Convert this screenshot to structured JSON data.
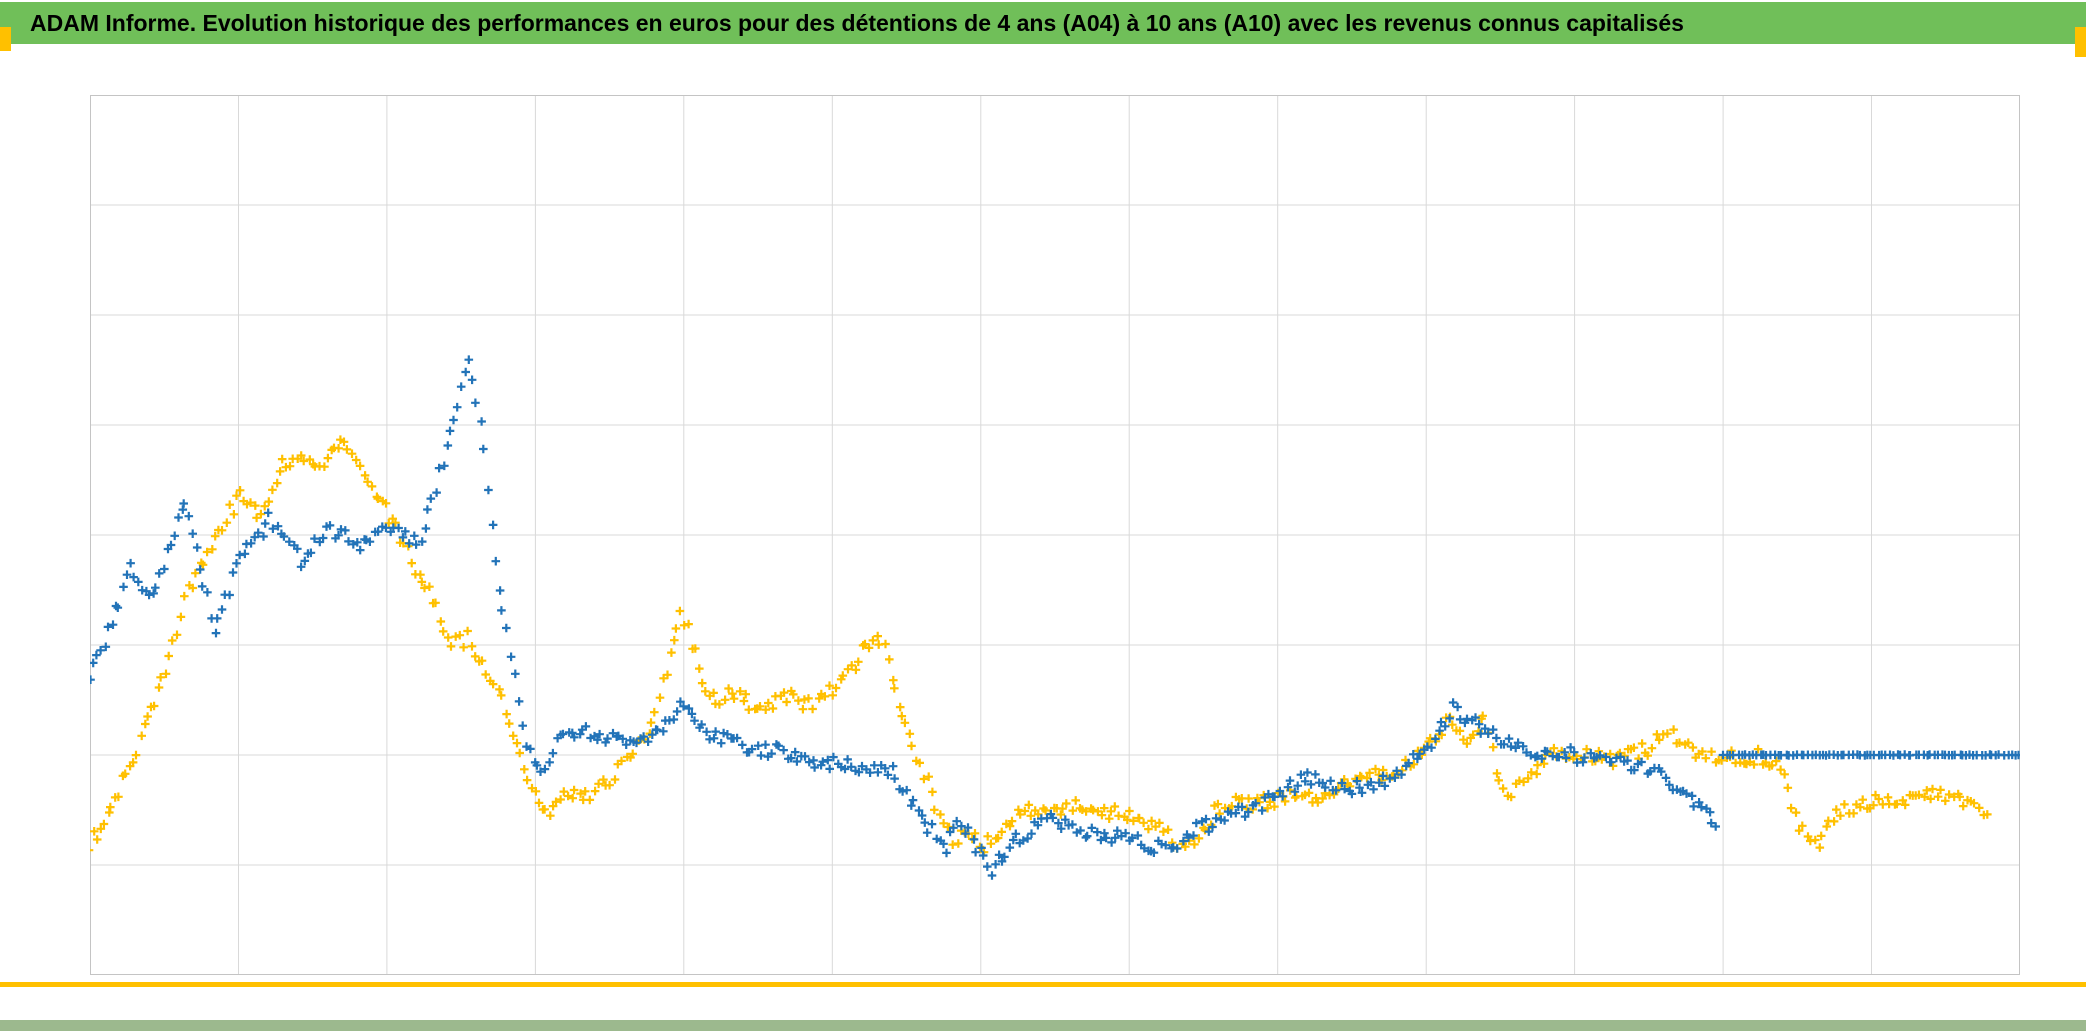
{
  "header": {
    "title": "ADAM Informe. Evolution historique des performances en euros pour des détentions de 4 ans (A04) à 10 ans (A10) avec les revenus connus capitalisés",
    "bg_color": "#70bf59",
    "text_color": "#000000"
  },
  "accents": {
    "corner_color": "#ffc000",
    "bottom_rule_color": "#ffc000",
    "footer_strip_color": "#9cb98e"
  },
  "chart_data": {
    "type": "scatter",
    "title": "",
    "xlabel": "",
    "ylabel": "",
    "x_tick_labels": [],
    "y_tick_labels": [],
    "legend": "none",
    "marker": "plus-cross",
    "grid": "on",
    "grid_color": "#d9d9d9",
    "frame_color": "#c4c4c4",
    "x_gridline_count": 14,
    "y_gridline_count": 9,
    "x_range": [
      0,
      13
    ],
    "y_range": [
      0,
      8
    ],
    "jitter": 0.07,
    "point_step": 0.025,
    "marker_size": 4.3,
    "marker_stroke": 2.2,
    "series": [
      {
        "id": "series_yellow",
        "name": "",
        "color": "#ffc000",
        "segments": [
          [
            [
              0,
              1.18
            ],
            [
              0.17,
              1.59
            ],
            [
              0.34,
              2.14
            ],
            [
              0.51,
              2.77
            ],
            [
              0.67,
              3.5
            ],
            [
              0.84,
              4.0
            ],
            [
              1.01,
              4.36
            ],
            [
              1.15,
              4.14
            ],
            [
              1.28,
              4.59
            ],
            [
              1.42,
              4.77
            ],
            [
              1.55,
              4.61
            ],
            [
              1.69,
              4.85
            ],
            [
              1.79,
              4.7
            ],
            [
              1.9,
              4.45
            ],
            [
              2.04,
              4.12
            ],
            [
              2.17,
              3.77
            ],
            [
              2.31,
              3.41
            ],
            [
              2.44,
              3.0
            ],
            [
              2.55,
              3.06
            ],
            [
              2.64,
              2.79
            ],
            [
              2.75,
              2.57
            ],
            [
              2.82,
              2.3
            ],
            [
              2.89,
              1.97
            ],
            [
              2.97,
              1.66
            ],
            [
              3.07,
              1.48
            ],
            [
              3.17,
              1.61
            ],
            [
              3.27,
              1.68
            ],
            [
              3.37,
              1.59
            ],
            [
              3.48,
              1.75
            ],
            [
              3.61,
              1.95
            ],
            [
              3.74,
              2.15
            ],
            [
              3.83,
              2.5
            ],
            [
              3.91,
              2.91
            ],
            [
              3.98,
              3.3
            ],
            [
              4.05,
              3.03
            ],
            [
              4.12,
              2.66
            ],
            [
              4.22,
              2.5
            ],
            [
              4.32,
              2.57
            ],
            [
              4.42,
              2.5
            ],
            [
              4.52,
              2.41
            ],
            [
              4.62,
              2.5
            ],
            [
              4.72,
              2.55
            ],
            [
              4.82,
              2.45
            ],
            [
              4.93,
              2.52
            ],
            [
              5.03,
              2.61
            ],
            [
              5.13,
              2.75
            ],
            [
              5.23,
              3.0
            ],
            [
              5.32,
              3.03
            ],
            [
              5.38,
              2.85
            ],
            [
              5.45,
              2.5
            ],
            [
              5.52,
              2.15
            ],
            [
              5.59,
              1.95
            ],
            [
              5.65,
              1.75
            ],
            [
              5.72,
              1.43
            ],
            [
              5.82,
              1.23
            ],
            [
              5.92,
              1.29
            ],
            [
              6.02,
              1.18
            ],
            [
              6.15,
              1.34
            ],
            [
              6.29,
              1.48
            ],
            [
              6.42,
              1.54
            ],
            [
              6.56,
              1.5
            ],
            [
              6.69,
              1.54
            ],
            [
              6.83,
              1.48
            ],
            [
              6.96,
              1.45
            ],
            [
              7.1,
              1.39
            ],
            [
              7.23,
              1.32
            ],
            [
              7.33,
              1.11
            ],
            [
              7.44,
              1.23
            ],
            [
              7.57,
              1.48
            ],
            [
              7.71,
              1.59
            ],
            [
              7.84,
              1.54
            ],
            [
              7.98,
              1.59
            ],
            [
              8.11,
              1.64
            ],
            [
              8.25,
              1.59
            ],
            [
              8.38,
              1.68
            ],
            [
              8.52,
              1.77
            ],
            [
              8.65,
              1.82
            ],
            [
              8.79,
              1.86
            ],
            [
              8.92,
              1.95
            ],
            [
              9.06,
              2.14
            ],
            [
              9.13,
              2.3
            ],
            [
              9.22,
              2.23
            ],
            [
              9.3,
              2.14
            ],
            [
              9.39,
              2.4
            ],
            [
              9.47,
              1.88
            ],
            [
              9.55,
              1.59
            ],
            [
              9.66,
              1.75
            ],
            [
              9.76,
              1.94
            ],
            [
              9.86,
              2.0
            ],
            [
              9.96,
              1.95
            ],
            [
              10.09,
              2.0
            ],
            [
              10.23,
              1.95
            ],
            [
              10.36,
              1.99
            ],
            [
              10.5,
              2.06
            ],
            [
              10.63,
              2.23
            ],
            [
              10.74,
              2.1
            ],
            [
              10.84,
              1.97
            ],
            [
              10.97,
              2.01
            ],
            [
              11.11,
              1.95
            ],
            [
              11.24,
              1.99
            ],
            [
              11.38,
              1.88
            ],
            [
              11.51,
              1.34
            ],
            [
              11.62,
              1.17
            ],
            [
              11.74,
              1.41
            ],
            [
              11.87,
              1.54
            ],
            [
              12.01,
              1.59
            ],
            [
              12.15,
              1.54
            ],
            [
              12.28,
              1.59
            ],
            [
              12.42,
              1.64
            ],
            [
              12.55,
              1.59
            ],
            [
              12.67,
              1.54
            ],
            [
              12.78,
              1.46
            ]
          ]
        ]
      },
      {
        "id": "series_blue",
        "name": "",
        "color": "#2273b8",
        "segments": [
          [
            [
              0,
              2.68
            ],
            [
              0.27,
              3.68
            ],
            [
              0.4,
              3.41
            ],
            [
              0.64,
              4.27
            ],
            [
              0.84,
              3.14
            ],
            [
              1.01,
              3.77
            ],
            [
              1.21,
              4.14
            ],
            [
              1.42,
              3.77
            ],
            [
              1.62,
              4.05
            ],
            [
              1.82,
              3.91
            ],
            [
              2.02,
              4.09
            ],
            [
              2.23,
              3.91
            ],
            [
              2.43,
              4.95
            ],
            [
              2.55,
              5.61
            ],
            [
              2.63,
              5.05
            ],
            [
              2.73,
              3.77
            ],
            [
              2.83,
              2.95
            ],
            [
              2.94,
              2.09
            ],
            [
              3.04,
              1.82
            ],
            [
              3.17,
              2.23
            ],
            [
              3.44,
              2.18
            ],
            [
              3.78,
              2.14
            ],
            [
              3.98,
              2.45
            ],
            [
              4.12,
              2.23
            ],
            [
              4.39,
              2.09
            ],
            [
              4.72,
              2.0
            ],
            [
              5.06,
              1.91
            ],
            [
              5.4,
              1.86
            ],
            [
              5.6,
              1.41
            ],
            [
              5.77,
              1.18
            ],
            [
              5.87,
              1.41
            ],
            [
              6.07,
              0.95
            ],
            [
              6.24,
              1.23
            ],
            [
              6.44,
              1.41
            ],
            [
              6.65,
              1.32
            ],
            [
              6.85,
              1.27
            ],
            [
              7.05,
              1.23
            ],
            [
              7.25,
              1.14
            ],
            [
              7.46,
              1.32
            ],
            [
              7.66,
              1.43
            ],
            [
              7.86,
              1.52
            ],
            [
              8.06,
              1.68
            ],
            [
              8.2,
              1.82
            ],
            [
              8.4,
              1.68
            ],
            [
              8.6,
              1.73
            ],
            [
              8.81,
              1.79
            ],
            [
              9.01,
              2.09
            ],
            [
              9.18,
              2.41
            ],
            [
              9.35,
              2.27
            ],
            [
              9.55,
              2.12
            ],
            [
              9.75,
              1.95
            ],
            [
              9.95,
              2.03
            ],
            [
              10.15,
              1.95
            ],
            [
              10.36,
              1.93
            ],
            [
              10.56,
              1.85
            ],
            [
              10.73,
              1.64
            ],
            [
              10.86,
              1.48
            ],
            [
              10.95,
              1.35
            ]
          ],
          [
            [
              11.0,
              2.0,
              0.004
            ],
            [
              12.99,
              2.0,
              0.004
            ]
          ]
        ]
      }
    ]
  }
}
